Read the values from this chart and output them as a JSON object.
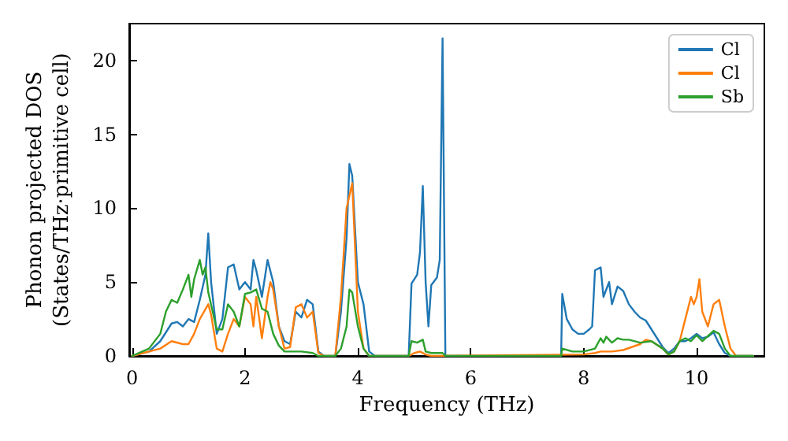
{
  "chart_data": {
    "type": "line",
    "xlabel": "Frequency (THz)",
    "ylabel": "Phonon projected DOS\n(States/THz·primitive cell)",
    "xlim": [
      -0.05,
      11.2
    ],
    "xticks": [
      0,
      2,
      4,
      6,
      8,
      10
    ],
    "ylim": [
      0,
      22.5
    ],
    "yticks": [
      0,
      5,
      10,
      15,
      20
    ],
    "grid": false,
    "legend": "top right",
    "marker": "none",
    "line_style": "solid",
    "series": [
      {
        "name": "Cl",
        "color": "#1f77b4",
        "x": [
          0,
          0.3,
          0.5,
          0.7,
          0.8,
          0.9,
          1.0,
          1.1,
          1.2,
          1.3,
          1.35,
          1.4,
          1.5,
          1.6,
          1.7,
          1.8,
          1.9,
          2.0,
          2.1,
          2.15,
          2.2,
          2.3,
          2.4,
          2.5,
          2.6,
          2.7,
          2.8,
          2.9,
          3.0,
          3.1,
          3.2,
          3.3,
          3.4,
          3.6,
          3.7,
          3.8,
          3.85,
          3.9,
          4.0,
          4.1,
          4.2,
          4.3,
          4.9,
          4.95,
          5.05,
          5.1,
          5.15,
          5.2,
          5.25,
          5.3,
          5.4,
          5.45,
          5.5,
          5.55,
          7.6,
          7.62,
          7.7,
          7.8,
          7.9,
          8.0,
          8.1,
          8.15,
          8.2,
          8.3,
          8.35,
          8.45,
          8.5,
          8.6,
          8.7,
          8.8,
          8.9,
          9.0,
          9.1,
          9.2,
          9.3,
          9.4,
          9.5,
          9.6,
          9.7,
          9.8,
          9.9,
          10.0,
          10.1,
          10.2,
          10.3,
          10.4,
          10.5,
          10.6,
          11
        ],
        "values": [
          0,
          0.3,
          1,
          2.2,
          2.3,
          2.0,
          2.5,
          2.3,
          3.8,
          5.5,
          8.3,
          5,
          1.5,
          2.5,
          6,
          6.2,
          4.5,
          5,
          4.5,
          6.5,
          5.8,
          4,
          6.5,
          5,
          2,
          1,
          0.8,
          3,
          2.6,
          3.8,
          3.5,
          0.3,
          0,
          0,
          3,
          8,
          13,
          12.2,
          5,
          3.5,
          0.3,
          0,
          0,
          4.9,
          5.5,
          7,
          11.5,
          5,
          2,
          4.8,
          5.3,
          6.5,
          21.5,
          0,
          0,
          4.2,
          2.5,
          1.8,
          1.5,
          1.5,
          1.8,
          2,
          5.8,
          6,
          4,
          5,
          3.5,
          4.7,
          4.4,
          3.5,
          3,
          2.6,
          2.4,
          1.8,
          1.2,
          0.6,
          0.2,
          0.5,
          1,
          1,
          1.2,
          1.5,
          1.2,
          1.3,
          1.6,
          0.8,
          0.2,
          0,
          0
        ]
      },
      {
        "name": "Cl",
        "color": "#ff7f0e",
        "x": [
          0,
          0.5,
          0.7,
          0.9,
          1.0,
          1.1,
          1.2,
          1.35,
          1.4,
          1.5,
          1.6,
          1.7,
          1.8,
          1.9,
          2.0,
          2.1,
          2.15,
          2.2,
          2.3,
          2.4,
          2.45,
          2.5,
          2.6,
          2.7,
          2.8,
          2.9,
          3.0,
          3.1,
          3.2,
          3.3,
          3.4,
          3.6,
          3.7,
          3.8,
          3.9,
          4.0,
          4.1,
          4.2,
          4.9,
          5.0,
          5.1,
          5.2,
          5.3,
          8.0,
          8.2,
          8.3,
          8.5,
          8.7,
          9.0,
          9.1,
          9.2,
          9.4,
          9.5,
          9.6,
          9.7,
          9.8,
          9.9,
          9.95,
          10.0,
          10.05,
          10.1,
          10.2,
          10.3,
          10.4,
          10.5,
          10.6,
          10.7,
          11
        ],
        "values": [
          0,
          0.5,
          1,
          0.8,
          0.8,
          1.5,
          2.5,
          3.5,
          2.8,
          0.5,
          0.3,
          1.5,
          2.5,
          2,
          4,
          3.5,
          2,
          4,
          1.2,
          4,
          5,
          4.5,
          2,
          0.5,
          0.6,
          3.3,
          3.5,
          2.6,
          3,
          0.2,
          0,
          0,
          4,
          10,
          11.7,
          3,
          0.5,
          0,
          0,
          0.2,
          0.3,
          0.1,
          0,
          0.1,
          0.2,
          0.3,
          0.3,
          0.4,
          0.8,
          1.1,
          1,
          0.5,
          0.1,
          0.3,
          1,
          2.5,
          4,
          3.5,
          4,
          5.2,
          3,
          2,
          3.5,
          3.8,
          2,
          0.5,
          0,
          0
        ]
      },
      {
        "name": "Sb",
        "color": "#2ca02c",
        "x": [
          0,
          0.3,
          0.5,
          0.6,
          0.7,
          0.8,
          0.9,
          1.0,
          1.05,
          1.1,
          1.2,
          1.25,
          1.3,
          1.35,
          1.5,
          1.6,
          1.7,
          1.8,
          1.9,
          2.0,
          2.1,
          2.2,
          2.3,
          2.4,
          2.5,
          2.6,
          2.7,
          2.8,
          3.0,
          3.2,
          3.3,
          3.6,
          3.7,
          3.8,
          3.85,
          3.9,
          4.0,
          4.1,
          4.2,
          4.9,
          4.95,
          5.05,
          5.15,
          5.2,
          5.3,
          5.5,
          5.55,
          7.6,
          7.62,
          7.8,
          8.0,
          8.2,
          8.3,
          8.35,
          8.4,
          8.5,
          8.6,
          8.7,
          8.8,
          9.0,
          9.2,
          9.4,
          9.5,
          9.6,
          9.7,
          9.8,
          9.9,
          10.0,
          10.1,
          10.3,
          10.4,
          10.5,
          10.6,
          11
        ],
        "values": [
          0,
          0.5,
          1.5,
          3,
          3.8,
          3.6,
          4.5,
          5.5,
          4,
          5.2,
          6.5,
          5.5,
          6,
          4.3,
          1.8,
          1.8,
          3.5,
          3,
          2,
          4.2,
          4.3,
          4.5,
          3.2,
          3,
          1.5,
          0.7,
          0.3,
          0.3,
          0.3,
          0.2,
          0,
          0,
          0.5,
          2,
          4.5,
          4.3,
          2,
          0.5,
          0,
          0,
          1,
          0.9,
          1.1,
          0.3,
          0.2,
          0.2,
          0,
          0,
          0.5,
          0.3,
          0.3,
          0.5,
          1.2,
          0.9,
          1.3,
          0.9,
          1.2,
          1.1,
          1.1,
          0.9,
          1,
          0.5,
          0.1,
          0.3,
          1,
          1.2,
          1,
          1.4,
          1,
          1.7,
          1.5,
          0.5,
          0,
          0
        ]
      }
    ]
  }
}
